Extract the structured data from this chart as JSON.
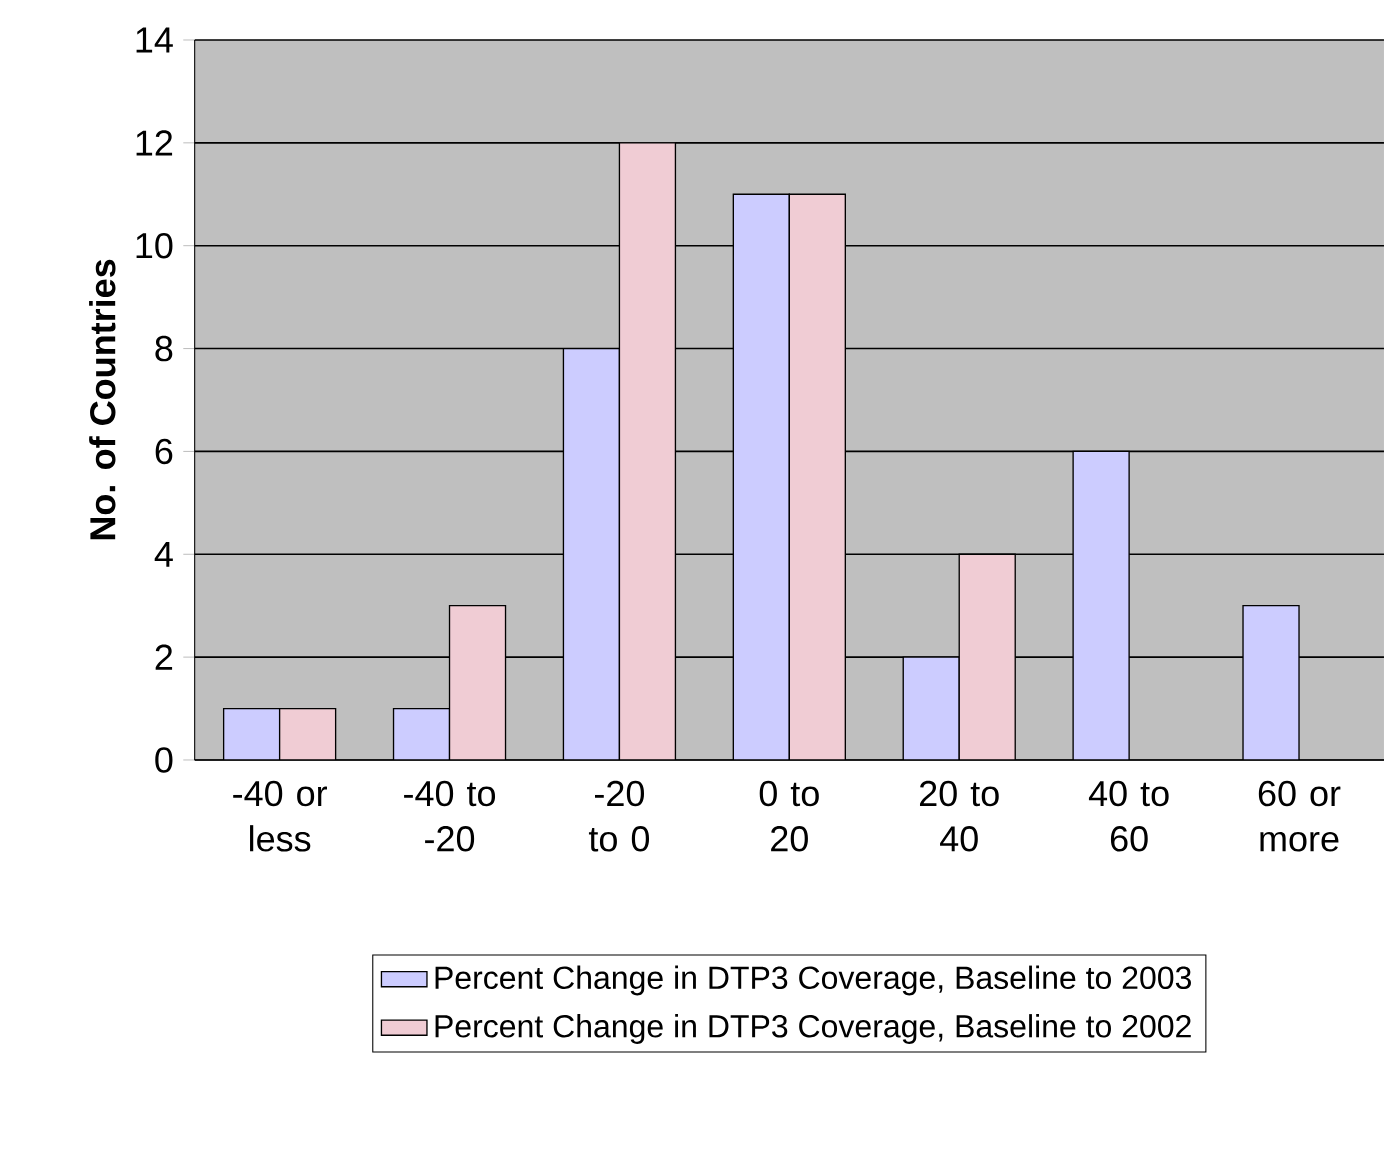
{
  "chart_data": {
    "type": "bar",
    "ylabel": "No. of Countries",
    "categories": [
      "-40 or less",
      "-40 to -20",
      "-20 to 0",
      "0 to 20",
      "20 to 40",
      "40 to 60",
      "60 or more"
    ],
    "series": [
      {
        "name": "Percent Change in DTP3 Coverage, Baseline to 2003",
        "color": "#ccccff",
        "values": [
          1,
          1,
          8,
          11,
          2,
          6,
          3
        ]
      },
      {
        "name": "Percent Change in DTP3 Coverage, Baseline to 2002",
        "color": "#f0ccd4",
        "values": [
          1,
          3,
          12,
          11,
          4,
          null,
          null
        ]
      }
    ],
    "ylim": [
      0,
      14
    ],
    "yticks": [
      0,
      2,
      4,
      6,
      8,
      10,
      12,
      14
    ],
    "grid": "y",
    "legend": "bottom"
  }
}
